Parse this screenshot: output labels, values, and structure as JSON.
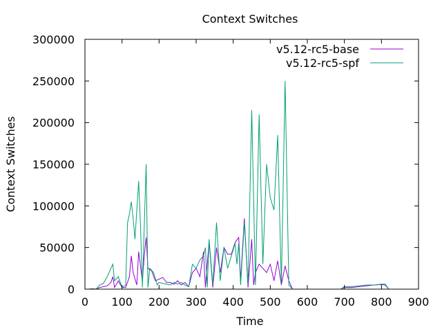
{
  "chart_data": {
    "type": "line",
    "title": "Context Switches",
    "xlabel": "Time",
    "ylabel": "Context Switches",
    "xlim": [
      0,
      900
    ],
    "ylim": [
      0,
      300000
    ],
    "xticks": [
      0,
      100,
      200,
      300,
      400,
      500,
      600,
      700,
      800,
      900
    ],
    "xtick_labels": [
      "0",
      "100",
      "200",
      "300",
      "400",
      "500",
      "600",
      "700",
      "800",
      "900"
    ],
    "yticks": [
      0,
      50000,
      100000,
      150000,
      200000,
      250000,
      300000
    ],
    "ytick_labels": [
      "0",
      "50000",
      "100000",
      "150000",
      "200000",
      "250000",
      "300000"
    ],
    "grid": false,
    "legend_position": "top-right",
    "series": [
      {
        "name": "v5.12-rc5-base",
        "color": "#9400d3",
        "points": [
          [
            10,
            0
          ],
          [
            20,
            500
          ],
          [
            30,
            0
          ],
          [
            40,
            2000
          ],
          [
            50,
            3000
          ],
          [
            60,
            4000
          ],
          [
            70,
            8000
          ],
          [
            75,
            15000
          ],
          [
            80,
            2000
          ],
          [
            90,
            10000
          ],
          [
            100,
            2000
          ],
          [
            110,
            2000
          ],
          [
            120,
            15000
          ],
          [
            125,
            40000
          ],
          [
            130,
            20000
          ],
          [
            140,
            5000
          ],
          [
            145,
            45000
          ],
          [
            155,
            10000
          ],
          [
            160,
            40000
          ],
          [
            165,
            62000
          ],
          [
            170,
            25000
          ],
          [
            180,
            22000
          ],
          [
            190,
            10000
          ],
          [
            200,
            12000
          ],
          [
            210,
            14000
          ],
          [
            220,
            8000
          ],
          [
            230,
            8000
          ],
          [
            240,
            6000
          ],
          [
            250,
            10000
          ],
          [
            260,
            5000
          ],
          [
            270,
            8000
          ],
          [
            280,
            3000
          ],
          [
            290,
            20000
          ],
          [
            300,
            25000
          ],
          [
            310,
            15000
          ],
          [
            320,
            45000
          ],
          [
            325,
            2000
          ],
          [
            335,
            58000
          ],
          [
            345,
            2000
          ],
          [
            355,
            50000
          ],
          [
            365,
            20000
          ],
          [
            375,
            50000
          ],
          [
            385,
            42000
          ],
          [
            395,
            42000
          ],
          [
            405,
            56000
          ],
          [
            415,
            62000
          ],
          [
            420,
            10000
          ],
          [
            430,
            85000
          ],
          [
            440,
            2000
          ],
          [
            450,
            60000
          ],
          [
            455,
            5000
          ],
          [
            460,
            20000
          ],
          [
            470,
            30000
          ],
          [
            480,
            25000
          ],
          [
            490,
            20000
          ],
          [
            500,
            30000
          ],
          [
            510,
            10000
          ],
          [
            520,
            34000
          ],
          [
            530,
            5000
          ],
          [
            540,
            28000
          ],
          [
            550,
            10000
          ],
          [
            560,
            0
          ],
          [
            570,
            0
          ],
          [
            690,
            0
          ],
          [
            700,
            2000
          ],
          [
            720,
            2000
          ],
          [
            740,
            3000
          ],
          [
            760,
            4000
          ],
          [
            780,
            5000
          ],
          [
            800,
            5500
          ],
          [
            810,
            5000
          ],
          [
            820,
            0
          ],
          [
            830,
            0
          ]
        ]
      },
      {
        "name": "v5.12-rc5-spf",
        "color": "#009e73",
        "points": [
          [
            10,
            0
          ],
          [
            20,
            500
          ],
          [
            30,
            0
          ],
          [
            40,
            5000
          ],
          [
            50,
            7000
          ],
          [
            60,
            15000
          ],
          [
            70,
            25000
          ],
          [
            75,
            30000
          ],
          [
            80,
            10000
          ],
          [
            90,
            15000
          ],
          [
            100,
            2000
          ],
          [
            110,
            5000
          ],
          [
            115,
            80000
          ],
          [
            120,
            90000
          ],
          [
            125,
            105000
          ],
          [
            130,
            85000
          ],
          [
            135,
            60000
          ],
          [
            145,
            130000
          ],
          [
            150,
            75000
          ],
          [
            155,
            2000
          ],
          [
            165,
            150000
          ],
          [
            170,
            2000
          ],
          [
            175,
            25000
          ],
          [
            185,
            20000
          ],
          [
            195,
            5000
          ],
          [
            200,
            8000
          ],
          [
            210,
            7000
          ],
          [
            220,
            6000
          ],
          [
            230,
            5000
          ],
          [
            240,
            8000
          ],
          [
            250,
            6000
          ],
          [
            260,
            8000
          ],
          [
            270,
            5000
          ],
          [
            280,
            3000
          ],
          [
            290,
            30000
          ],
          [
            300,
            25000
          ],
          [
            310,
            35000
          ],
          [
            320,
            40000
          ],
          [
            325,
            50000
          ],
          [
            330,
            2000
          ],
          [
            335,
            60000
          ],
          [
            345,
            5000
          ],
          [
            355,
            80000
          ],
          [
            365,
            10000
          ],
          [
            375,
            50000
          ],
          [
            385,
            25000
          ],
          [
            395,
            40000
          ],
          [
            405,
            55000
          ],
          [
            410,
            30000
          ],
          [
            415,
            55000
          ],
          [
            420,
            5000
          ],
          [
            430,
            80000
          ],
          [
            440,
            5000
          ],
          [
            450,
            215000
          ],
          [
            460,
            5000
          ],
          [
            470,
            210000
          ],
          [
            480,
            30000
          ],
          [
            490,
            150000
          ],
          [
            500,
            110000
          ],
          [
            510,
            95000
          ],
          [
            520,
            185000
          ],
          [
            530,
            5000
          ],
          [
            540,
            250000
          ],
          [
            550,
            5000
          ],
          [
            560,
            0
          ],
          [
            570,
            0
          ],
          [
            690,
            0
          ],
          [
            700,
            3000
          ],
          [
            720,
            3000
          ],
          [
            740,
            4000
          ],
          [
            760,
            5000
          ],
          [
            780,
            5000
          ],
          [
            800,
            6000
          ],
          [
            810,
            6000
          ],
          [
            820,
            0
          ],
          [
            830,
            0
          ]
        ]
      }
    ]
  }
}
